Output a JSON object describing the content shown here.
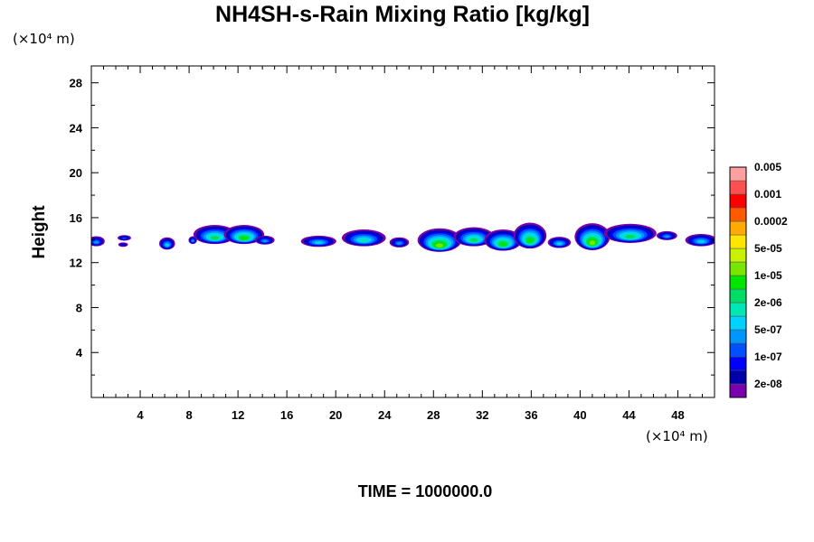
{
  "chart_data": {
    "type": "heatmap",
    "title": "NH4SH-s-Rain Mixing Ratio [kg/kg]",
    "ylabel": "Height",
    "x_unit": "(×10⁴ m)",
    "y_unit": "(×10⁴ m)",
    "xlim": [
      0,
      51
    ],
    "ylim": [
      0,
      29.5
    ],
    "x_ticks": [
      4,
      8,
      12,
      16,
      20,
      24,
      28,
      32,
      36,
      40,
      44,
      48
    ],
    "y_ticks": [
      4,
      8,
      12,
      16,
      20,
      24,
      28
    ],
    "footer": "TIME = 1000000.0",
    "colorbar": {
      "colors": [
        "#7b00ad",
        "#0000a8",
        "#0000ff",
        "#0050ff",
        "#0096ff",
        "#00d2ff",
        "#00e6b4",
        "#00dc64",
        "#00e600",
        "#78e600",
        "#c8f000",
        "#ffe600",
        "#ffaa00",
        "#ff5a00",
        "#ff0000",
        "#ff5050",
        "#ffa0a0"
      ],
      "labels": [
        "2e-08",
        "1e-07",
        "5e-07",
        "2e-06",
        "1e-05",
        "5e-05",
        "0.0002",
        "0.001",
        "0.005"
      ]
    },
    "cells": [
      {
        "x": 0.4,
        "y": 13.9,
        "w": 1.4,
        "h": 0.9,
        "peak": 4
      },
      {
        "x": 2.7,
        "y": 14.2,
        "w": 1.1,
        "h": 0.5,
        "peak": 3
      },
      {
        "x": 2.6,
        "y": 13.6,
        "w": 0.8,
        "h": 0.4,
        "peak": 2
      },
      {
        "x": 6.2,
        "y": 13.7,
        "w": 1.3,
        "h": 1.1,
        "peak": 5
      },
      {
        "x": 8.3,
        "y": 14.0,
        "w": 0.7,
        "h": 0.7,
        "peak": 4
      },
      {
        "x": 10.1,
        "y": 14.5,
        "w": 3.5,
        "h": 1.7,
        "peak": 7
      },
      {
        "x": 12.5,
        "y": 14.5,
        "w": 3.3,
        "h": 1.7,
        "peak": 8
      },
      {
        "x": 14.2,
        "y": 14.0,
        "w": 1.6,
        "h": 0.8,
        "peak": 4
      },
      {
        "x": 18.6,
        "y": 13.9,
        "w": 2.9,
        "h": 1.0,
        "peak": 5
      },
      {
        "x": 22.3,
        "y": 14.2,
        "w": 3.6,
        "h": 1.5,
        "peak": 6
      },
      {
        "x": 25.2,
        "y": 13.8,
        "w": 1.6,
        "h": 0.9,
        "peak": 4
      },
      {
        "x": 28.5,
        "y": 14.0,
        "w": 3.6,
        "h": 2.1,
        "peak": 9
      },
      {
        "x": 31.3,
        "y": 14.3,
        "w": 3.3,
        "h": 1.7,
        "peak": 7
      },
      {
        "x": 33.7,
        "y": 14.0,
        "w": 3.1,
        "h": 1.9,
        "peak": 8
      },
      {
        "x": 35.9,
        "y": 14.4,
        "w": 2.7,
        "h": 2.3,
        "peak": 8
      },
      {
        "x": 38.3,
        "y": 13.8,
        "w": 1.9,
        "h": 1.0,
        "peak": 5
      },
      {
        "x": 41.0,
        "y": 14.3,
        "w": 2.9,
        "h": 2.4,
        "peak": 9
      },
      {
        "x": 44.1,
        "y": 14.6,
        "w": 4.3,
        "h": 1.7,
        "peak": 7
      },
      {
        "x": 47.1,
        "y": 14.4,
        "w": 1.7,
        "h": 0.8,
        "peak": 4
      },
      {
        "x": 49.9,
        "y": 14.0,
        "w": 2.6,
        "h": 1.1,
        "peak": 5
      }
    ]
  }
}
